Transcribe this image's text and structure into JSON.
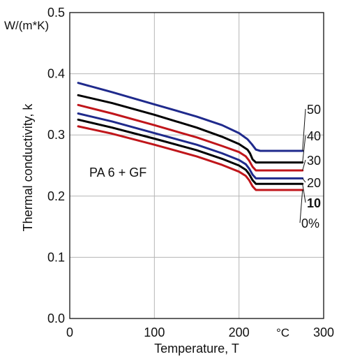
{
  "chart_data": {
    "type": "line",
    "xlabel": "Temperature, T",
    "ylabel": "Thermal conductivity, k",
    "y_unit": "W/(m*K)",
    "x_unit": "°C",
    "annotation": "PA 6 + GF",
    "xlim": [
      0,
      300
    ],
    "ylim": [
      0.0,
      0.5
    ],
    "x_ticks": [
      "0",
      "100",
      "200",
      "300"
    ],
    "y_ticks": [
      "0.0",
      "0.1",
      "0.2",
      "0.3",
      "0.4",
      "0.5"
    ],
    "grid": true,
    "series": [
      {
        "name": "50",
        "color": "#1f2a8c",
        "points": [
          [
            10,
            0.385
          ],
          [
            50,
            0.37
          ],
          [
            100,
            0.35
          ],
          [
            150,
            0.33
          ],
          [
            180,
            0.316
          ],
          [
            200,
            0.303
          ],
          [
            210,
            0.293
          ],
          [
            215,
            0.285
          ],
          [
            220,
            0.276
          ],
          [
            225,
            0.274
          ],
          [
            260,
            0.274
          ],
          [
            275,
            0.274
          ]
        ]
      },
      {
        "name": "40",
        "color": "#000000",
        "points": [
          [
            10,
            0.365
          ],
          [
            50,
            0.352
          ],
          [
            100,
            0.333
          ],
          [
            150,
            0.312
          ],
          [
            180,
            0.297
          ],
          [
            200,
            0.285
          ],
          [
            210,
            0.276
          ],
          [
            213,
            0.27
          ],
          [
            216,
            0.26
          ],
          [
            220,
            0.255
          ],
          [
            260,
            0.255
          ],
          [
            275,
            0.255
          ]
        ]
      },
      {
        "name": "30",
        "color": "#c0161b",
        "points": [
          [
            10,
            0.349
          ],
          [
            50,
            0.335
          ],
          [
            100,
            0.316
          ],
          [
            150,
            0.296
          ],
          [
            180,
            0.282
          ],
          [
            200,
            0.272
          ],
          [
            208,
            0.265
          ],
          [
            212,
            0.258
          ],
          [
            216,
            0.248
          ],
          [
            220,
            0.242
          ],
          [
            260,
            0.242
          ],
          [
            275,
            0.242
          ]
        ]
      },
      {
        "name": "20",
        "color": "#1f2a8c",
        "points": [
          [
            10,
            0.335
          ],
          [
            50,
            0.322
          ],
          [
            100,
            0.303
          ],
          [
            150,
            0.284
          ],
          [
            180,
            0.27
          ],
          [
            200,
            0.259
          ],
          [
            208,
            0.252
          ],
          [
            212,
            0.245
          ],
          [
            216,
            0.235
          ],
          [
            220,
            0.229
          ],
          [
            260,
            0.229
          ],
          [
            275,
            0.229
          ]
        ]
      },
      {
        "name": "10",
        "color": "#000000",
        "bold": true,
        "points": [
          [
            10,
            0.325
          ],
          [
            50,
            0.312
          ],
          [
            100,
            0.294
          ],
          [
            150,
            0.275
          ],
          [
            180,
            0.261
          ],
          [
            200,
            0.25
          ],
          [
            208,
            0.243
          ],
          [
            212,
            0.236
          ],
          [
            216,
            0.226
          ],
          [
            220,
            0.22
          ],
          [
            260,
            0.22
          ],
          [
            275,
            0.22
          ]
        ]
      },
      {
        "name": "0%",
        "color": "#c0161b",
        "points": [
          [
            10,
            0.314
          ],
          [
            50,
            0.302
          ],
          [
            100,
            0.284
          ],
          [
            150,
            0.265
          ],
          [
            180,
            0.251
          ],
          [
            200,
            0.24
          ],
          [
            208,
            0.233
          ],
          [
            212,
            0.226
          ],
          [
            216,
            0.216
          ],
          [
            220,
            0.21
          ],
          [
            260,
            0.21
          ],
          [
            275,
            0.21
          ]
        ]
      }
    ]
  }
}
